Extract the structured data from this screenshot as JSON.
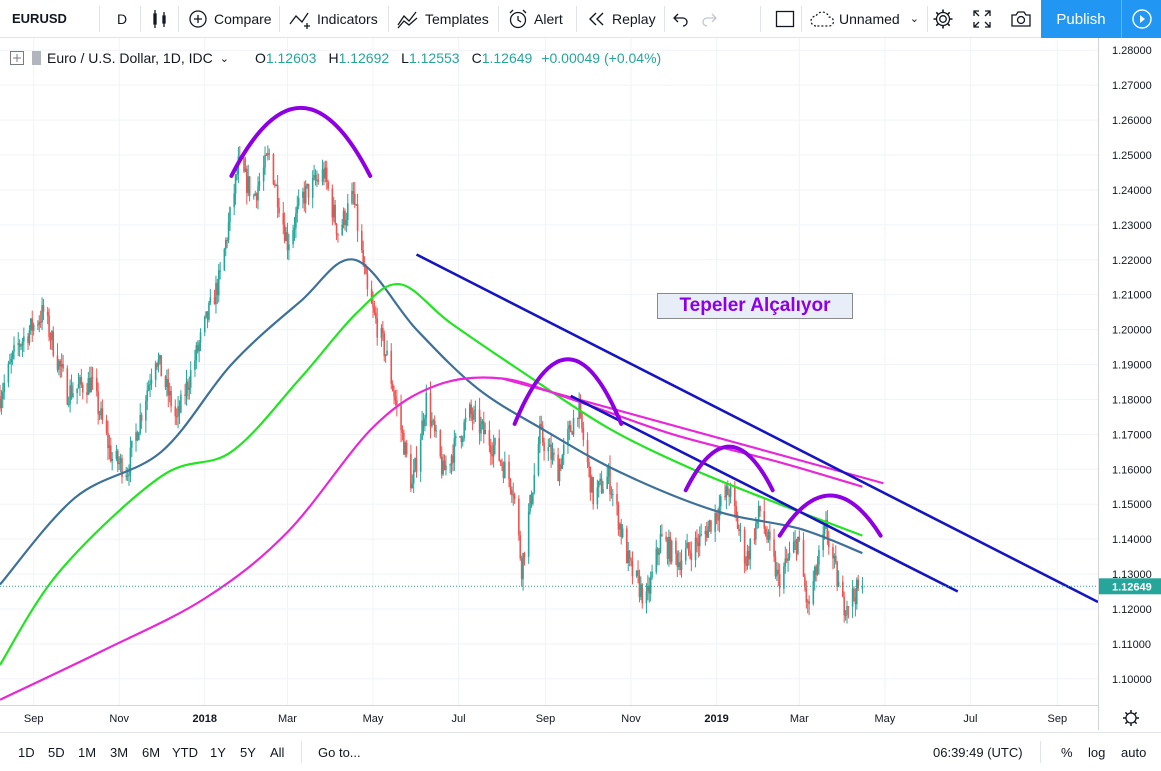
{
  "toolbar": {
    "symbol": "EURUSD",
    "interval": "D",
    "compare": "Compare",
    "indicators": "Indicators",
    "templates": "Templates",
    "alert": "Alert",
    "replay": "Replay",
    "layout_name": "Unnamed",
    "publish": "Publish"
  },
  "legend": {
    "title": "Euro / U.S. Dollar, 1D, IDC",
    "o_label": "O",
    "o": "1.12603",
    "h_label": "H",
    "h": "1.12692",
    "l_label": "L",
    "l": "1.12553",
    "c_label": "C",
    "c": "1.12649",
    "change": "+0.00049 (+0.04%)"
  },
  "annotation": "Tepeler Alçalıyor",
  "bottom": {
    "ranges": [
      "1D",
      "5D",
      "1M",
      "3M",
      "6M",
      "YTD",
      "1Y",
      "5Y",
      "All"
    ],
    "goto": "Go to...",
    "clock": "06:39:49 (UTC)",
    "percent": "%",
    "log": "log",
    "auto": "auto"
  },
  "colors": {
    "up": "#26a69a",
    "down": "#ef5350",
    "ma_short": "#3d7199",
    "ma_mid": "#22e522",
    "ma_long": "#e828d8",
    "trendline": "#1414c4",
    "arc": "#8e00e3",
    "accent": "#2196f3"
  },
  "chart_data": {
    "type": "candlestick",
    "symbol": "EURUSD",
    "title": "Euro / U.S. Dollar, 1D, IDC",
    "y_ticks": [
      1.28,
      1.27,
      1.26,
      1.25,
      1.24,
      1.23,
      1.22,
      1.21,
      1.2,
      1.19,
      1.18,
      1.17,
      1.16,
      1.15,
      1.14,
      1.13,
      1.12,
      1.11,
      1.1
    ],
    "y_tick_labels": [
      "1.28000",
      "1.27000",
      "1.26000",
      "1.25000",
      "1.24000",
      "1.23000",
      "1.22000",
      "1.21000",
      "1.20000",
      "1.19000",
      "1.18000",
      "1.17000",
      "1.16000",
      "1.15000",
      "1.14000",
      "1.13000",
      "1.12000",
      "1.11000",
      "1.10000"
    ],
    "ylim": [
      1.0925,
      1.2835
    ],
    "last_price_label": "1.12649",
    "last_price": 1.12649,
    "x_ticks": [
      "Sep",
      "Nov",
      "2018",
      "Mar",
      "May",
      "Jul",
      "Sep",
      "Nov",
      "2019",
      "Mar",
      "May",
      "Jul",
      "Sep"
    ],
    "x_tick_dates": [
      "2017-09-01",
      "2017-11-01",
      "2018-01-01",
      "2018-03-01",
      "2018-05-01",
      "2018-07-01",
      "2018-09-01",
      "2018-11-01",
      "2019-01-01",
      "2019-03-01",
      "2019-05-01",
      "2019-07-01",
      "2019-09-01"
    ],
    "xlim": [
      "2017-08-08",
      "2019-09-30"
    ],
    "last_date": "2019-04-15",
    "price_path": [
      [
        "2017-08-08",
        1.181
      ],
      [
        "2017-08-20",
        1.195
      ],
      [
        "2017-09-08",
        1.205
      ],
      [
        "2017-09-25",
        1.182
      ],
      [
        "2017-10-12",
        1.185
      ],
      [
        "2017-10-27",
        1.163
      ],
      [
        "2017-11-07",
        1.16
      ],
      [
        "2017-11-27",
        1.193
      ],
      [
        "2017-12-12",
        1.174
      ],
      [
        "2018-01-01",
        1.201
      ],
      [
        "2018-01-12",
        1.215
      ],
      [
        "2018-01-25",
        1.247
      ],
      [
        "2018-02-05",
        1.238
      ],
      [
        "2018-02-16",
        1.25
      ],
      [
        "2018-03-01",
        1.225
      ],
      [
        "2018-03-12",
        1.238
      ],
      [
        "2018-03-27",
        1.245
      ],
      [
        "2018-04-06",
        1.228
      ],
      [
        "2018-04-17",
        1.238
      ],
      [
        "2018-04-27",
        1.21
      ],
      [
        "2018-05-11",
        1.192
      ],
      [
        "2018-05-29",
        1.155
      ],
      [
        "2018-06-08",
        1.18
      ],
      [
        "2018-06-20",
        1.159
      ],
      [
        "2018-07-09",
        1.176
      ],
      [
        "2018-07-27",
        1.166
      ],
      [
        "2018-08-09",
        1.155
      ],
      [
        "2018-08-15",
        1.132
      ],
      [
        "2018-08-28",
        1.17
      ],
      [
        "2018-09-10",
        1.16
      ],
      [
        "2018-09-24",
        1.178
      ],
      [
        "2018-10-05",
        1.152
      ],
      [
        "2018-10-16",
        1.158
      ],
      [
        "2018-10-31",
        1.132
      ],
      [
        "2018-11-12",
        1.122
      ],
      [
        "2018-11-22",
        1.14
      ],
      [
        "2018-12-05",
        1.134
      ],
      [
        "2018-12-21",
        1.14
      ],
      [
        "2019-01-10",
        1.154
      ],
      [
        "2019-01-22",
        1.134
      ],
      [
        "2019-02-01",
        1.148
      ],
      [
        "2019-02-14",
        1.128
      ],
      [
        "2019-02-28",
        1.14
      ],
      [
        "2019-03-07",
        1.12
      ],
      [
        "2019-03-20",
        1.143
      ],
      [
        "2019-04-01",
        1.121
      ],
      [
        "2019-04-15",
        1.1265
      ]
    ],
    "moving_averages": [
      {
        "color": "#3d7199",
        "points": [
          [
            "2017-08-08",
            1.127
          ],
          [
            "2017-10-01",
            1.152
          ],
          [
            "2017-12-01",
            1.165
          ],
          [
            "2018-01-20",
            1.19
          ],
          [
            "2018-03-10",
            1.208
          ],
          [
            "2018-04-18",
            1.22
          ],
          [
            "2018-06-01",
            1.2
          ],
          [
            "2018-07-15",
            1.183
          ],
          [
            "2018-09-01",
            1.171
          ],
          [
            "2018-10-25",
            1.159
          ],
          [
            "2019-01-01",
            1.148
          ],
          [
            "2019-03-01",
            1.143
          ],
          [
            "2019-04-15",
            1.136
          ]
        ]
      },
      {
        "color": "#22e522",
        "points": [
          [
            "2017-08-08",
            1.104
          ],
          [
            "2017-09-20",
            1.131
          ],
          [
            "2017-12-01",
            1.158
          ],
          [
            "2018-01-20",
            1.165
          ],
          [
            "2018-03-10",
            1.186
          ],
          [
            "2018-04-20",
            1.205
          ],
          [
            "2018-05-20",
            1.213
          ],
          [
            "2018-06-25",
            1.202
          ],
          [
            "2018-08-15",
            1.188
          ],
          [
            "2018-10-15",
            1.172
          ],
          [
            "2018-12-15",
            1.16
          ],
          [
            "2019-02-15",
            1.15
          ],
          [
            "2019-04-15",
            1.141
          ]
        ]
      },
      {
        "color": "#e828d8",
        "points": [
          [
            "2017-08-08",
            1.094
          ],
          [
            "2017-10-20",
            1.108
          ],
          [
            "2018-01-01",
            1.123
          ],
          [
            "2018-03-01",
            1.142
          ],
          [
            "2018-05-01",
            1.172
          ],
          [
            "2018-06-15",
            1.184
          ],
          [
            "2018-08-01",
            1.186
          ],
          [
            "2018-09-20",
            1.18
          ],
          [
            "2018-12-01",
            1.17
          ],
          [
            "2019-02-15",
            1.162
          ],
          [
            "2019-04-15",
            1.155
          ]
        ]
      }
    ],
    "drawings": {
      "head_arcs": [
        {
          "from": "2018-01-20",
          "to": "2018-04-29",
          "peak": 1.2635,
          "ends": 1.244
        },
        {
          "from": "2018-08-10",
          "to": "2018-10-25",
          "peak": 1.1915,
          "ends": 1.173
        },
        {
          "from": "2018-12-10",
          "to": "2019-02-10",
          "peak": 1.1665,
          "ends": 1.154
        },
        {
          "from": "2019-02-15",
          "to": "2019-04-28",
          "peak": 1.1525,
          "ends": 1.141
        }
      ],
      "falling_trendline": [
        [
          "2018-09-19",
          1.181
        ],
        [
          "2019-06-22",
          1.125
        ]
      ],
      "support_line": [
        [
          "2018-06-01",
          1.2215
        ],
        [
          "2019-09-30",
          1.122
        ]
      ],
      "ma_extension_segment": [
        [
          "2018-08-01",
          1.186
        ],
        [
          "2019-04-30",
          1.156
        ]
      ]
    }
  }
}
